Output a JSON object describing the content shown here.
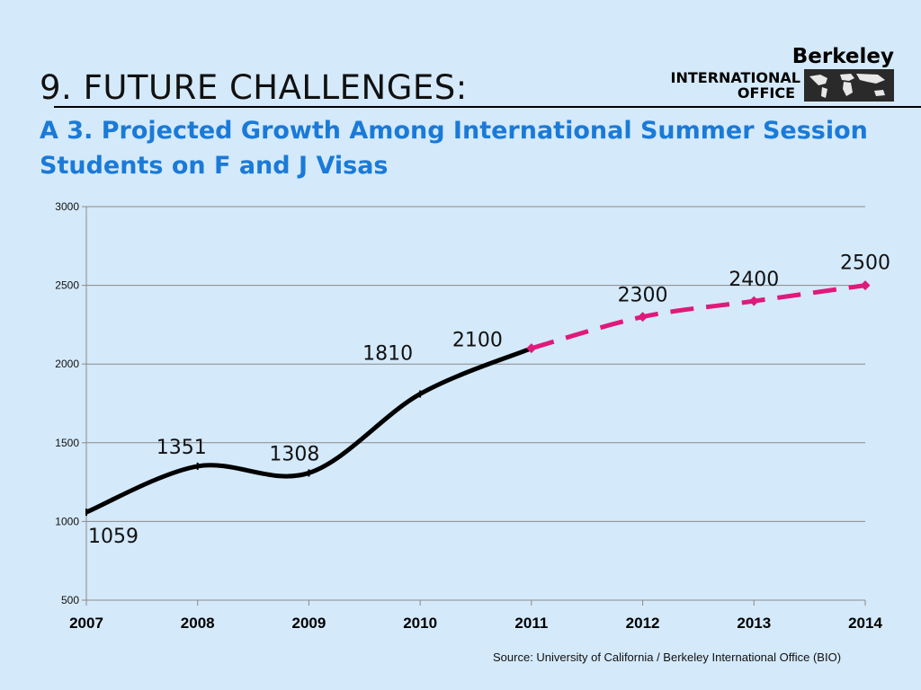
{
  "slide": {
    "heading": "9.  FUTURE CHALLENGES:",
    "subtitle": "A 3. Projected Growth Among International Summer Session Students on F and J Visas",
    "source": "Source:  University of California / Berkeley International Office (BIO)"
  },
  "logo": {
    "name": "Berkeley",
    "line1": "INTERNATIONAL",
    "line2": "OFFICE",
    "icon": "world-map-icon"
  },
  "colors": {
    "background": "#d4e9fa",
    "actual_line": "#000000",
    "projected_line": "#e0197a",
    "subtitle": "#1a7ad8"
  },
  "chart_data": {
    "type": "line",
    "categories": [
      "2007",
      "2008",
      "2009",
      "2010",
      "2011",
      "2012",
      "2013",
      "2014"
    ],
    "ylim": [
      500,
      3000
    ],
    "yticks": [
      500,
      1000,
      1500,
      2000,
      2500,
      3000
    ],
    "grid": true,
    "legend": "none",
    "series": [
      {
        "style": "solid",
        "color": "#000000",
        "x": [
          "2007",
          "2008",
          "2009",
          "2010",
          "2011"
        ],
        "values": [
          1059,
          1351,
          1308,
          1810,
          2100
        ]
      },
      {
        "style": "dashed",
        "color": "#e0197a",
        "x": [
          "2011",
          "2012",
          "2013",
          "2014"
        ],
        "values": [
          2100,
          2300,
          2400,
          2500
        ]
      }
    ],
    "data_labels": [
      "1059",
      "1351",
      "1308",
      "1810",
      "2100",
      "2300",
      "2400",
      "2500"
    ]
  }
}
